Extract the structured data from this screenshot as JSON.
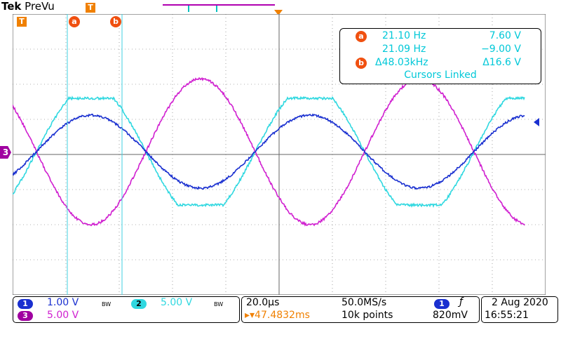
{
  "header": {
    "brand": "Tek",
    "mode": "PreVu",
    "trigger_badge": "T"
  },
  "cursors": {
    "a_label": "a",
    "b_label": "b",
    "readout": {
      "a_freq": "21.10 Hz",
      "a_volt": "7.60 V",
      "b_freq": "21.09 Hz",
      "b_volt": "−9.00 V",
      "delta_freq": "Δ48.03kHz",
      "delta_volt": "Δ16.6 V",
      "linked": "Cursors Linked"
    }
  },
  "channels": {
    "ch1": {
      "label": "1",
      "scale": "1.00 V",
      "bw": "BW",
      "color": "#1a30d0"
    },
    "ch2": {
      "label": "2",
      "scale": "5.00 V",
      "bw": "BW",
      "color": "#30d8e0"
    },
    "ch3": {
      "label": "3",
      "scale": "5.00 V",
      "color": "#d020d0"
    }
  },
  "timebase": {
    "scale": "20.0µs",
    "sample_rate": "50.0MS/s",
    "position": "▸▾47.4832ms",
    "record_length": "10k points"
  },
  "trigger": {
    "source": "1",
    "slope_icon": "rising-edge",
    "slope_glyph": "ƒ",
    "level": "820mV"
  },
  "clock": {
    "date": "2 Aug 2020",
    "time": "16:55:21"
  },
  "colors": {
    "grid": "#555555",
    "cursor": "#40d0e0",
    "badge_orange": "#f08000"
  }
}
